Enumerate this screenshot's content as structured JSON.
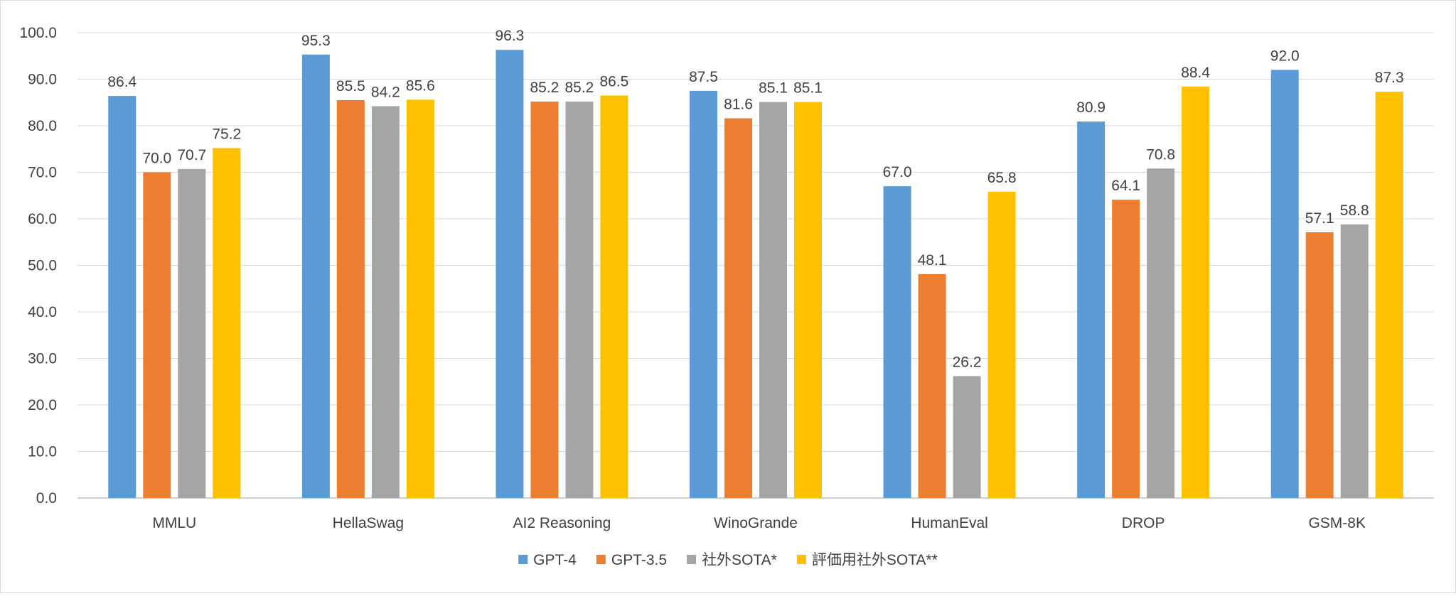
{
  "chart_data": {
    "type": "bar",
    "title": "",
    "xlabel": "",
    "ylabel": "",
    "ylim": [
      0,
      100
    ],
    "ytick_step": 10,
    "ytick_labels": [
      "0.0",
      "10.0",
      "20.0",
      "30.0",
      "40.0",
      "50.0",
      "60.0",
      "70.0",
      "80.0",
      "90.0",
      "100.0"
    ],
    "grid": true,
    "legend_position": "bottom-center",
    "categories": [
      "MMLU",
      "HellaSwag",
      "AI2 Reasoning",
      "WinoGrande",
      "HumanEval",
      "DROP",
      "GSM-8K"
    ],
    "series": [
      {
        "name": "GPT-4",
        "color": "#5b9bd5",
        "values": [
          86.4,
          95.3,
          96.3,
          87.5,
          67.0,
          80.9,
          92.0
        ],
        "labels": [
          "86.4",
          "95.3",
          "96.3",
          "87.5",
          "67.0",
          "80.9",
          "92.0"
        ]
      },
      {
        "name": "GPT-3.5",
        "color": "#ed7d31",
        "values": [
          70.0,
          85.5,
          85.2,
          81.6,
          48.1,
          64.1,
          57.1
        ],
        "labels": [
          "70.0",
          "85.5",
          "85.2",
          "81.6",
          "48.1",
          "64.1",
          "57.1"
        ]
      },
      {
        "name": "社外SOTA*",
        "color": "#a5a5a5",
        "values": [
          70.7,
          84.2,
          85.2,
          85.1,
          26.2,
          70.8,
          58.8
        ],
        "labels": [
          "70.7",
          "84.2",
          "85.2",
          "85.1",
          "26.2",
          "70.8",
          "58.8"
        ]
      },
      {
        "name": "評価用社外SOTA**",
        "color": "#ffc000",
        "values": [
          75.2,
          85.6,
          86.5,
          85.1,
          65.8,
          88.4,
          87.3
        ],
        "labels": [
          "75.2",
          "85.6",
          "86.5",
          "85.1",
          "65.8",
          "88.4",
          "87.3"
        ]
      }
    ]
  }
}
